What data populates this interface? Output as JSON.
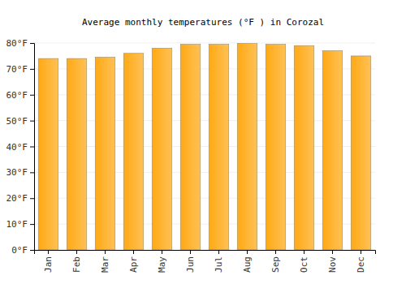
{
  "chart_data": {
    "type": "bar",
    "title": "Average monthly temperatures (°F ) in Corozal",
    "categories": [
      "Jan",
      "Feb",
      "Mar",
      "Apr",
      "May",
      "Jun",
      "Jul",
      "Aug",
      "Sep",
      "Oct",
      "Nov",
      "Dec"
    ],
    "values": [
      74,
      74,
      74.5,
      76,
      78,
      79.5,
      79.5,
      80,
      79.5,
      79,
      77,
      75
    ],
    "color": "#ffb22e",
    "ylim": [
      0,
      80
    ],
    "yticks": [
      {
        "value": 0,
        "label": "0°F"
      },
      {
        "value": 10,
        "label": "10°F"
      },
      {
        "value": 20,
        "label": "20°F"
      },
      {
        "value": 30,
        "label": "30°F"
      },
      {
        "value": 40,
        "label": "40°F"
      },
      {
        "value": 50,
        "label": "50°F"
      },
      {
        "value": 60,
        "label": "60°F"
      },
      {
        "value": 70,
        "label": "70°F"
      },
      {
        "value": 80,
        "label": "80°F"
      }
    ],
    "grid": true
  }
}
